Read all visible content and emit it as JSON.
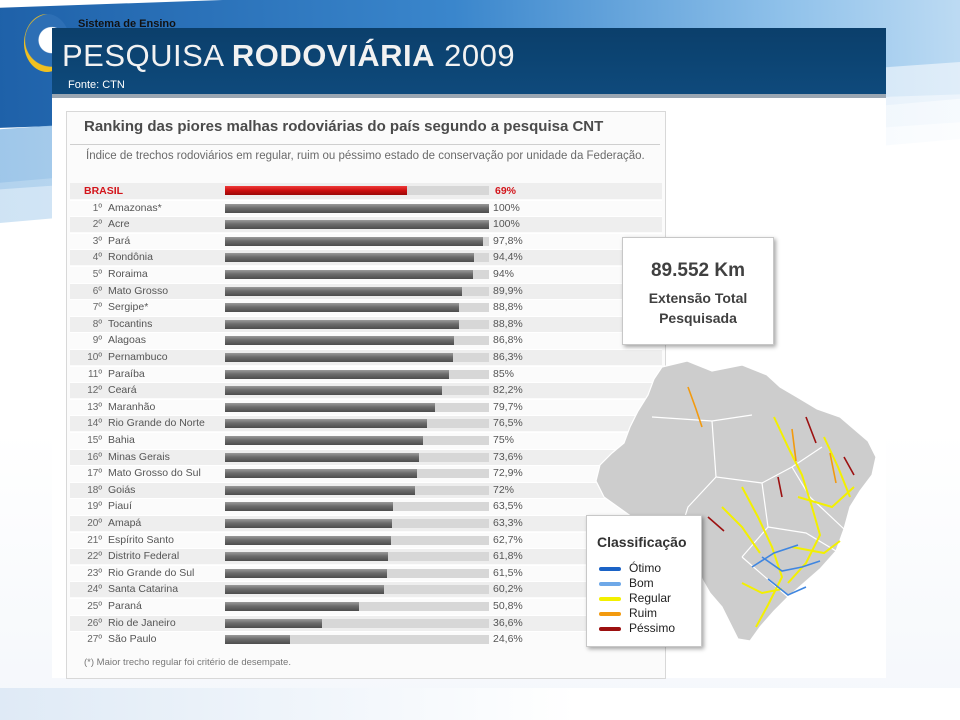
{
  "header": {
    "logo_text": "Sistema de Ensino",
    "title_light": "PESQUISA",
    "title_bold": "RODOVIÁRIA",
    "title_year": "2009",
    "source": "Fonte: CTN"
  },
  "chart_data": {
    "type": "bar",
    "title": "Ranking das piores malhas rodoviárias do país segundo a pesquisa CNT",
    "subtitle": "Índice de trechos rodoviários em regular, ruim ou péssimo estado de conservação por unidade da Federação.",
    "xlim": [
      0,
      100
    ],
    "highlight": {
      "name": "BRASIL",
      "value": 69,
      "value_label": "69%",
      "color": "#cc1010"
    },
    "categories": [
      "Amazonas*",
      "Acre",
      "Pará",
      "Rondônia",
      "Roraima",
      "Mato Grosso",
      "Sergipe*",
      "Tocantins",
      "Alagoas",
      "Pernambuco",
      "Paraíba",
      "Ceará",
      "Maranhão",
      "Rio Grande do Norte",
      "Bahia",
      "Minas Gerais",
      "Mato Grosso do Sul",
      "Goiás",
      "Piauí",
      "Amapá",
      "Espírito Santo",
      "Distrito Federal",
      "Rio Grande do Sul",
      "Santa Catarina",
      "Paraná",
      "Rio de Janeiro",
      "São Paulo"
    ],
    "ranks": [
      "1º",
      "2º",
      "3º",
      "4º",
      "5º",
      "6º",
      "7º",
      "8º",
      "9º",
      "10º",
      "11º",
      "12º",
      "13º",
      "14º",
      "15º",
      "16º",
      "17º",
      "18º",
      "19º",
      "20º",
      "21º",
      "22º",
      "23º",
      "24º",
      "25º",
      "26º",
      "27º"
    ],
    "values": [
      100,
      100,
      97.8,
      94.4,
      94,
      89.9,
      88.8,
      88.8,
      86.8,
      86.3,
      85,
      82.2,
      79.7,
      76.5,
      75,
      73.6,
      72.9,
      72,
      63.5,
      63.3,
      62.7,
      61.8,
      61.5,
      60.2,
      50.8,
      36.6,
      24.6
    ],
    "value_labels": [
      "100%",
      "100%",
      "97,8%",
      "94,4%",
      "94%",
      "89,9%",
      "88,8%",
      "88,8%",
      "86,8%",
      "86,3%",
      "85%",
      "82,2%",
      "79,7%",
      "76,5%",
      "75%",
      "73,6%",
      "72,9%",
      "72%",
      "63,5%",
      "63,3%",
      "62,7%",
      "61,8%",
      "61,5%",
      "60,2%",
      "50,8%",
      "36,6%",
      "24,6%"
    ],
    "footnote": "(*) Maior trecho regular foi critério de desempate."
  },
  "summary": {
    "km_value": "89.552 Km",
    "km_label_line1": "Extensão Total",
    "km_label_line2": "Pesquisada"
  },
  "legend": {
    "title": "Classificação",
    "items": [
      {
        "label": "Ótimo",
        "color": "#1b63c6"
      },
      {
        "label": "Bom",
        "color": "#6ea8e8"
      },
      {
        "label": "Regular",
        "color": "#f3f000"
      },
      {
        "label": "Ruim",
        "color": "#f29a0f"
      },
      {
        "label": "Péssimo",
        "color": "#9c1010"
      }
    ]
  }
}
